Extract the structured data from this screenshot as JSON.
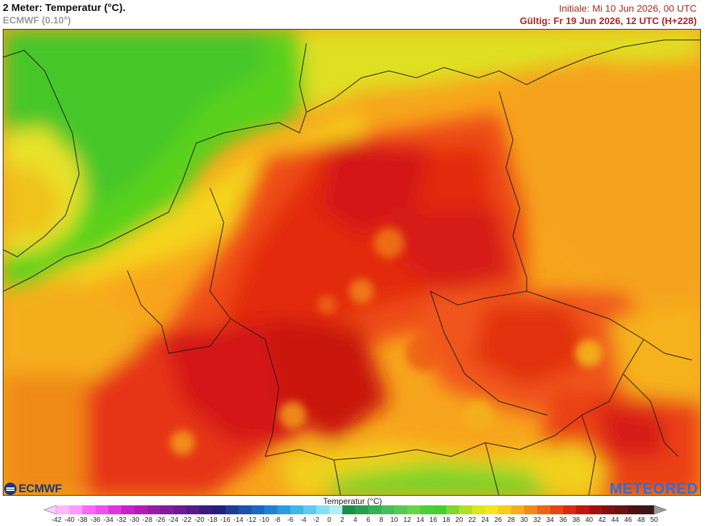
{
  "header": {
    "title": "2 Meter: Temperatur (°C).",
    "model": "ECMWF (0.10°)",
    "init": "Initiale: Mi 10 Jun 2026, 00 UTC",
    "valid": "Gültig: Fr 19 Jun 2026, 12 UTC (H+228)"
  },
  "logos": {
    "ecmwf": "ECMWF",
    "meteored": "METEORED"
  },
  "legend": {
    "title": "Temperatur (°C)",
    "ticks": [
      -42,
      -40,
      -38,
      -36,
      -34,
      -32,
      -30,
      -28,
      -26,
      -24,
      -22,
      -20,
      -18,
      -16,
      -14,
      -12,
      -10,
      -8,
      -6,
      -4,
      -2,
      0,
      2,
      4,
      6,
      8,
      10,
      12,
      14,
      16,
      18,
      20,
      22,
      24,
      26,
      28,
      30,
      32,
      34,
      36,
      38,
      40,
      42,
      44,
      46,
      48,
      50
    ],
    "colors": [
      "#ffb8ff",
      "#ff99ff",
      "#ff66ff",
      "#f24df2",
      "#e033e0",
      "#cc1ecc",
      "#b31ab8",
      "#9a1aa8",
      "#8519a0",
      "#6e1a96",
      "#561a8c",
      "#3c1a82",
      "#22207c",
      "#1c3c96",
      "#1a52ad",
      "#1a68c4",
      "#1f80d8",
      "#2a9be6",
      "#40b6ef",
      "#5ccdf2",
      "#86e0f3",
      "#b0eef2",
      "#1a8f4a",
      "#26a050",
      "#33b058",
      "#44bf5a",
      "#55cb52",
      "#66d646",
      "#46d336",
      "#3fd12d",
      "#7fd92a",
      "#b3e024",
      "#dde61e",
      "#f5e61a",
      "#f7cc1a",
      "#f7ad1a",
      "#f28a17",
      "#ec6614",
      "#e64612",
      "#dc2a10",
      "#c4140f",
      "#a40f10",
      "#850f12",
      "#6b1212",
      "#4a1212",
      "#3a1616",
      "#6b6b6b",
      "#9a9a9a"
    ],
    "colors_note": "",
    "under_color": "#ffcdf9",
    "over_color": "#9a9a9a"
  }
}
